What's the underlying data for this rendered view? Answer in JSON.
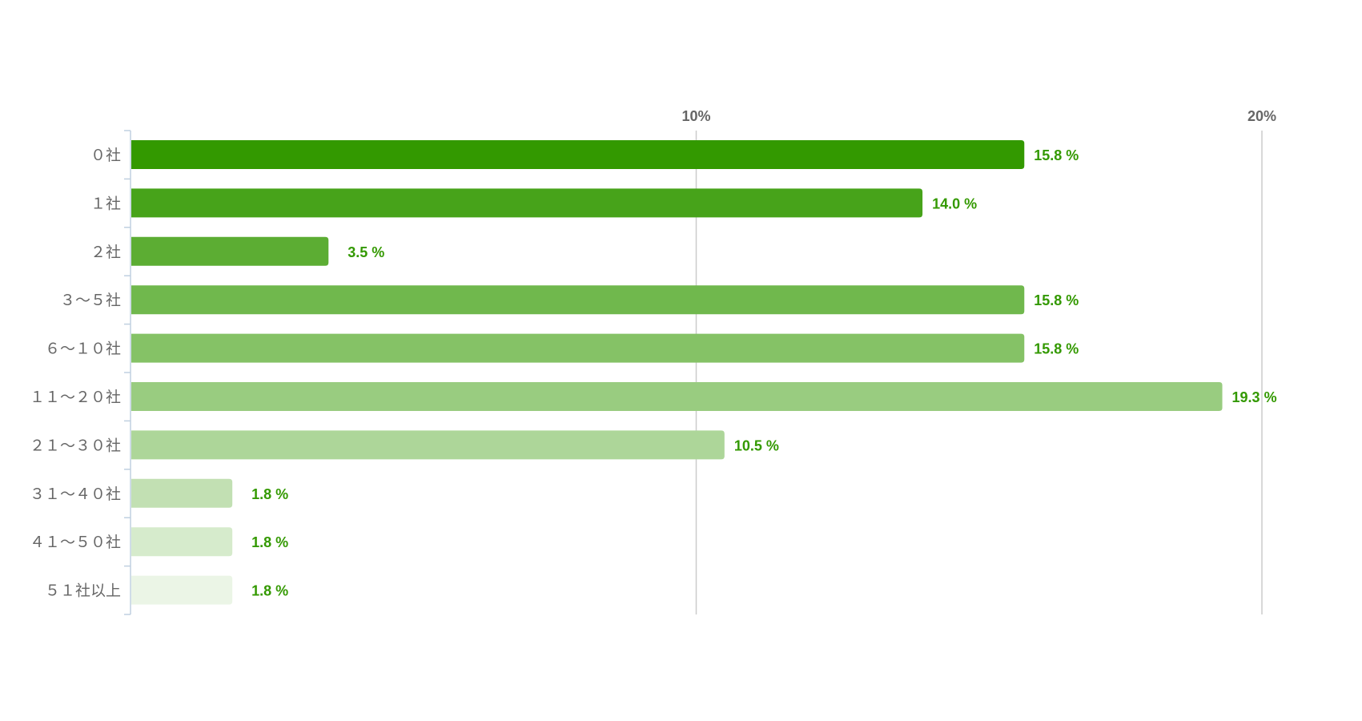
{
  "chart_data": {
    "type": "bar",
    "orientation": "horizontal",
    "title": "",
    "xlabel": "",
    "ylabel": "",
    "xlim": [
      0,
      20
    ],
    "ticks": [
      {
        "value": 10,
        "label": "10%"
      },
      {
        "value": 20,
        "label": "20%"
      }
    ],
    "grid": true,
    "categories": [
      "０社",
      "１社",
      "２社",
      "３～５社",
      "６～１０社",
      "１１～２０社",
      "２１～３０社",
      "３１～４０社",
      "４１～５０社",
      "５１社以上"
    ],
    "values": [
      15.8,
      14.0,
      3.5,
      15.8,
      15.8,
      19.3,
      10.5,
      1.8,
      1.8,
      1.8
    ],
    "value_labels": [
      "15.8 %",
      "14.0 %",
      "3.5 %",
      "15.8 %",
      "15.8 %",
      "19.3 %",
      "10.5 %",
      "1.8 %",
      "1.8 %",
      "1.8 %"
    ],
    "colors": [
      "#339900",
      "#47a31a",
      "#5cad33",
      "#70b84d",
      "#85c266",
      "#99cc80",
      "#add699",
      "#c2e0b3",
      "#d6ebcc",
      "#ebf5e6"
    ],
    "label_color": "#339900"
  }
}
